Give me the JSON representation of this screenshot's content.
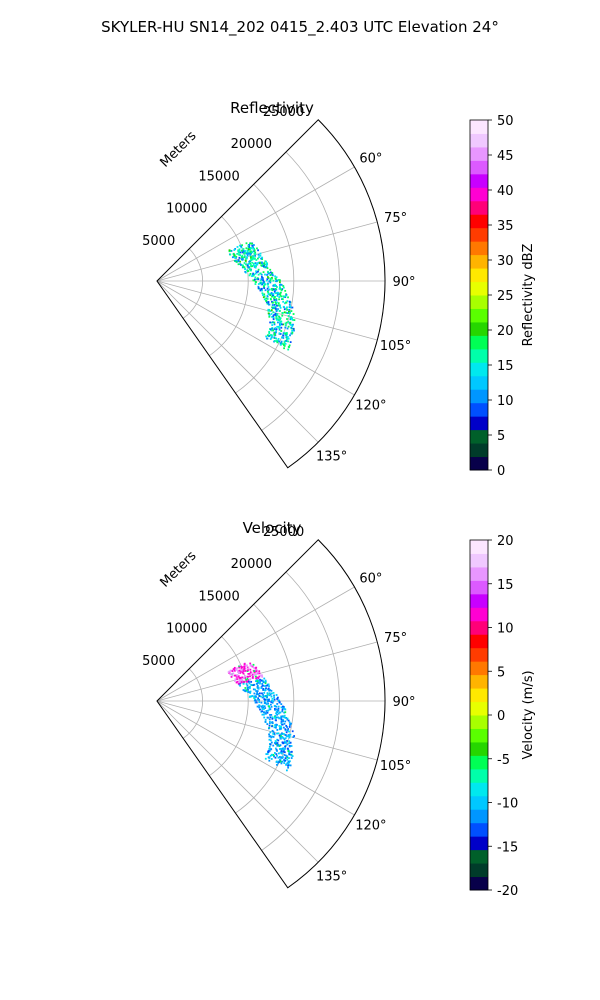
{
  "figure": {
    "title": "SKYLER-HU  SN14_202  0415_2.403 UTC Elevation 24°"
  },
  "chart_data": [
    {
      "type": "polar-sector",
      "title": "Reflectivity",
      "range_label": "Meters",
      "range_ticks": [
        5000,
        10000,
        15000,
        20000,
        25000
      ],
      "range_max": 25000,
      "azimuth_range_deg": [
        45,
        145
      ],
      "azimuth_tick_labels": [
        "60°",
        "75°",
        "90°",
        "105°",
        "120°",
        "135°"
      ],
      "azimuth_ticks_deg": [
        60,
        75,
        90,
        105,
        120,
        135
      ],
      "colorbar": {
        "label": "Reflectivity dBZ",
        "min": 0,
        "max": 50,
        "ticks": [
          0,
          5,
          10,
          15,
          20,
          25,
          30,
          35,
          40,
          45,
          50
        ],
        "colors": [
          "#08004a",
          "#003c2a",
          "#00602a",
          "#0000c8",
          "#0050ff",
          "#0096ff",
          "#00c8ff",
          "#00e8ee",
          "#00ffaa",
          "#00ff55",
          "#26d600",
          "#5aff00",
          "#a8ff00",
          "#e8ff00",
          "#ffe800",
          "#ffb400",
          "#ff7800",
          "#ff3c00",
          "#ff0000",
          "#ff0078",
          "#ff00d2",
          "#c800ff",
          "#dc5aff",
          "#e896ff",
          "#f0c8ff",
          "#fce6ff"
        ]
      },
      "echo_band": {
        "range_m": [
          10000,
          16000
        ],
        "azimuth_deg": [
          66,
          118
        ],
        "dominant_values_dbz": [
          10,
          15,
          18
        ]
      }
    },
    {
      "type": "polar-sector",
      "title": "Velocity",
      "range_label": "Meters",
      "range_ticks": [
        5000,
        10000,
        15000,
        20000,
        25000
      ],
      "range_max": 25000,
      "azimuth_range_deg": [
        45,
        145
      ],
      "azimuth_tick_labels": [
        "60°",
        "75°",
        "90°",
        "105°",
        "120°",
        "135°"
      ],
      "azimuth_ticks_deg": [
        60,
        75,
        90,
        105,
        120,
        135
      ],
      "colorbar": {
        "label": "Velocity (m/s)",
        "min": -20,
        "max": 20,
        "ticks": [
          -20,
          -15,
          -10,
          -5,
          0,
          5,
          10,
          15,
          20
        ],
        "colors": [
          "#08004a",
          "#003c2a",
          "#00602a",
          "#0000c8",
          "#0050ff",
          "#0096ff",
          "#00c8ff",
          "#00e8ee",
          "#00ffaa",
          "#00ff55",
          "#26d600",
          "#5aff00",
          "#a8ff00",
          "#e8ff00",
          "#ffe800",
          "#ffb400",
          "#ff7800",
          "#ff3c00",
          "#ff0000",
          "#ff0078",
          "#ff00d2",
          "#c800ff",
          "#dc5aff",
          "#e896ff",
          "#f0c8ff",
          "#fce6ff"
        ]
      },
      "echo_band": {
        "range_m": [
          10000,
          16000
        ],
        "azimuth_deg": [
          66,
          118
        ],
        "dominant_values_ms": [
          -11,
          12,
          16
        ]
      }
    }
  ]
}
